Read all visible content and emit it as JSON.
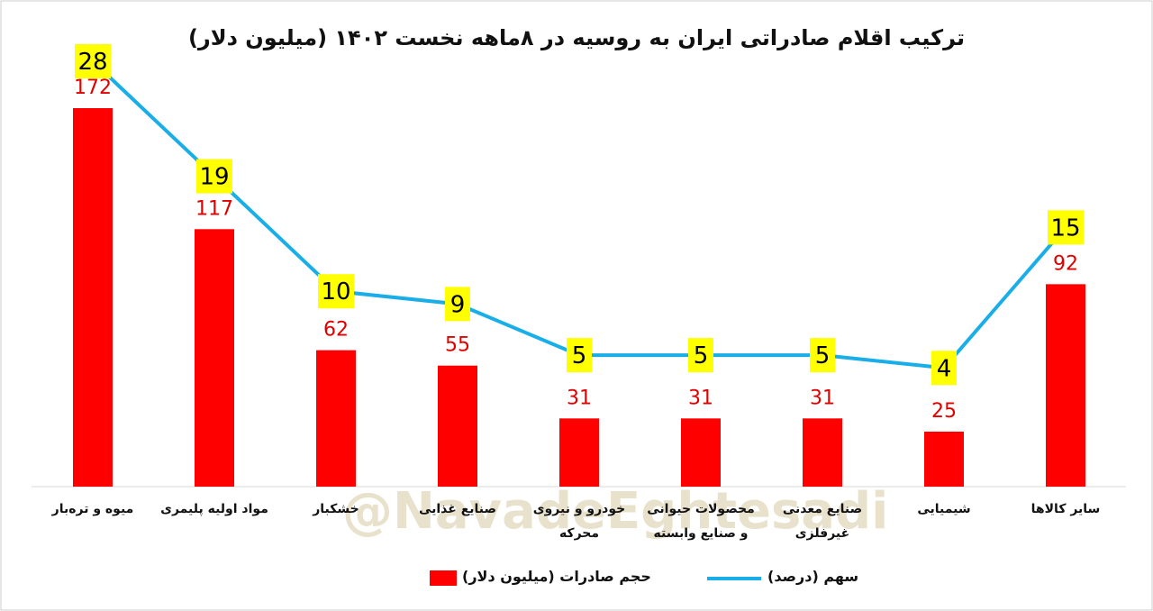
{
  "chart_data": {
    "type": "bar-line",
    "title": "ترکیب اقلام صادراتی ایران به روسیه در ۸ماهه نخست ۱۴۰۲ (میلیون دلار)",
    "watermark": "@NavadeEghtesadi",
    "categories": [
      "میوه و تره‌بار",
      "مواد اولیه پلیمری",
      "خشکبار",
      "صنایع غذایی",
      "خودرو و نیروی محرکه",
      "محصولات حیوانی و صنایع وابسته",
      "صنایع معدنی غیرفلزی",
      "شیمیایی",
      "سایر کالاها"
    ],
    "series": [
      {
        "name": "حجم صادرات (میلیون دلار)",
        "type": "bar",
        "color": "#ff0000",
        "values": [
          172,
          117,
          62,
          55,
          31,
          31,
          31,
          25,
          92
        ]
      },
      {
        "name": "سهم (درصد)",
        "type": "line",
        "color": "#1aaee8",
        "values": [
          28,
          19,
          10,
          9,
          5,
          5,
          5,
          4,
          15
        ]
      }
    ]
  }
}
